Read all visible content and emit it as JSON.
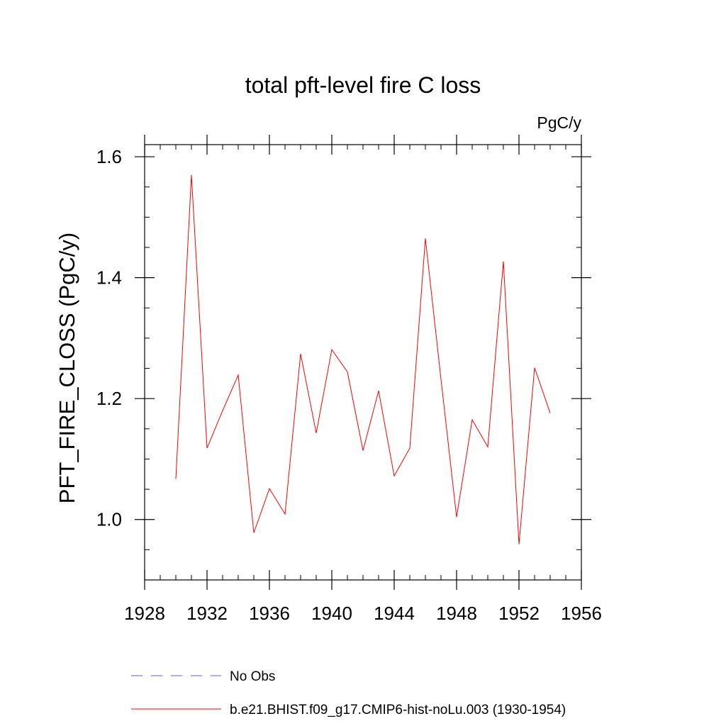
{
  "chart_data": {
    "type": "line",
    "title": "total pft-level fire C loss",
    "units_label": "PgC/y",
    "ylabel": "PFT_FIRE_CLOSS  (PgC/y)",
    "xlabel": "",
    "xlim": [
      1928,
      1956
    ],
    "ylim": [
      0.9,
      1.62
    ],
    "x_ticks": [
      1928,
      1932,
      1936,
      1940,
      1944,
      1948,
      1952,
      1956
    ],
    "x_minor_step": 1,
    "y_ticks": [
      1.0,
      1.2,
      1.4,
      1.6
    ],
    "y_tick_labels": [
      "1.0",
      "1.2",
      "1.4",
      "1.6"
    ],
    "y_minor_step": 0.05,
    "grid": false,
    "legend_position": "bottom",
    "series": [
      {
        "name": "b.e21.BHIST.f09_g17.CMIP6-hist-noLu.003 (1930-1954)",
        "color": "#ff0000",
        "style": "solid",
        "x": [
          1930,
          1931,
          1932,
          1933,
          1934,
          1935,
          1936,
          1937,
          1938,
          1939,
          1940,
          1941,
          1942,
          1943,
          1944,
          1945,
          1946,
          1947,
          1948,
          1949,
          1950,
          1951,
          1952,
          1953,
          1954
        ],
        "values": [
          1.067,
          1.57,
          1.118,
          1.18,
          1.239,
          0.978,
          1.051,
          1.009,
          1.274,
          1.143,
          1.281,
          1.244,
          1.114,
          1.213,
          1.072,
          1.118,
          1.465,
          1.232,
          1.004,
          1.165,
          1.12,
          1.427,
          0.959,
          1.251,
          1.176
        ]
      }
    ],
    "legend": [
      {
        "label": "No Obs",
        "color": "#6a5acd",
        "style": "dashed"
      },
      {
        "label": "b.e21.BHIST.f09_g17.CMIP6-hist-noLu.003 (1930-1954)",
        "color": "#ff0000",
        "style": "solid"
      }
    ]
  }
}
